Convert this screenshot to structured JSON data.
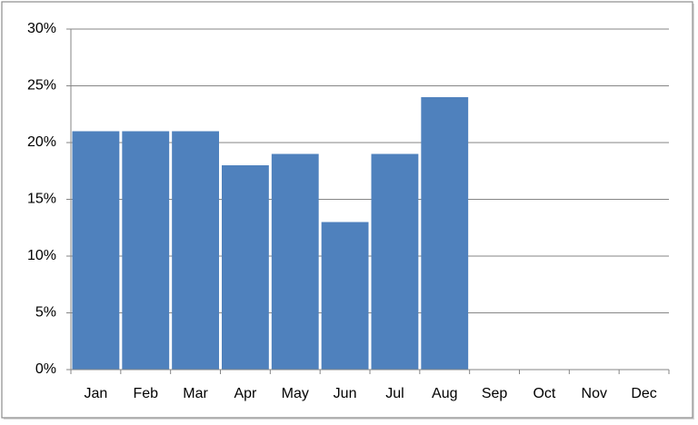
{
  "chart_data": {
    "type": "bar",
    "categories": [
      "Jan",
      "Feb",
      "Mar",
      "Apr",
      "May",
      "Jun",
      "Jul",
      "Aug",
      "Sep",
      "Oct",
      "Nov",
      "Dec"
    ],
    "values": [
      21,
      21,
      21,
      18,
      19,
      13,
      19,
      24,
      null,
      null,
      null,
      null
    ],
    "color": "#4f81bd",
    "ylim": [
      0,
      30
    ],
    "yticks": [
      {
        "value": 0,
        "label": "0%"
      },
      {
        "value": 5,
        "label": "5%"
      },
      {
        "value": 10,
        "label": "10%"
      },
      {
        "value": 15,
        "label": "15%"
      },
      {
        "value": 20,
        "label": "20%"
      },
      {
        "value": 25,
        "label": "25%"
      },
      {
        "value": 30,
        "label": "30%"
      }
    ],
    "grid": true
  }
}
